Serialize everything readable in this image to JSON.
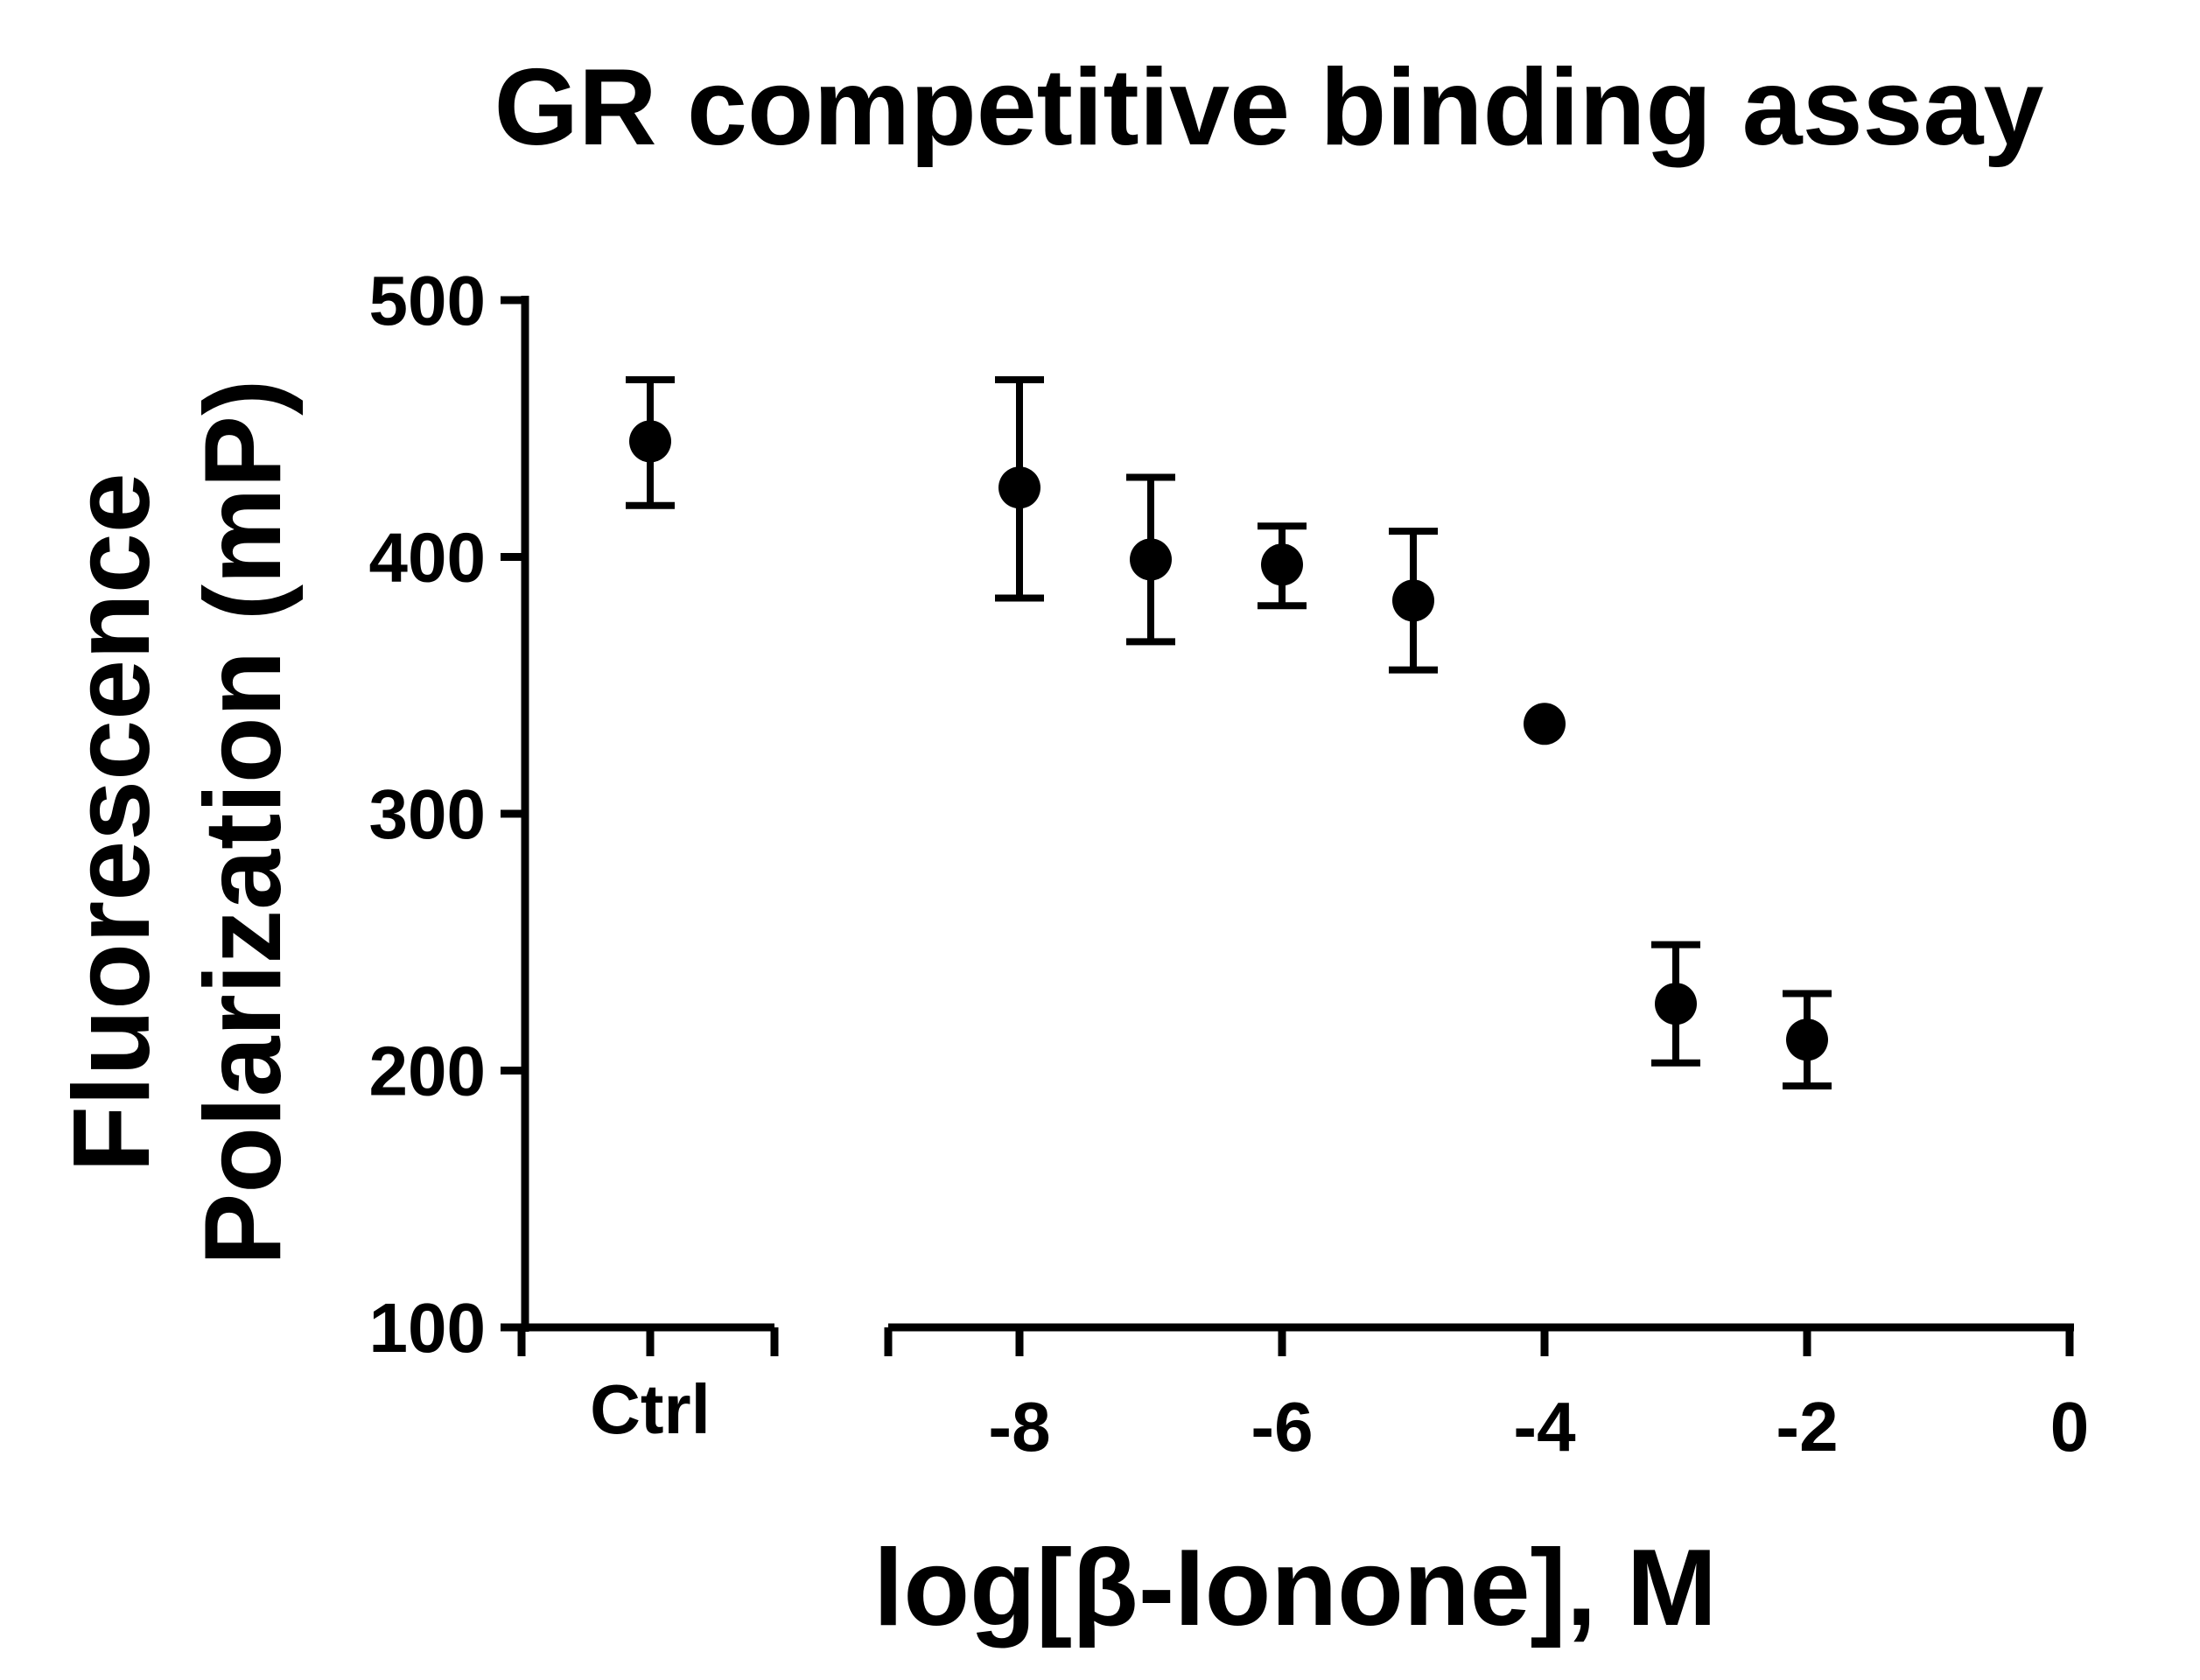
{
  "chart_data": {
    "type": "scatter",
    "title": "GR competitive binding assay",
    "ylabel_line1": "Fluorescence",
    "ylabel_line2": "Polarization (mP)",
    "xlabel": "log[β-Ionone], M",
    "ylim": [
      100,
      500
    ],
    "yticks": [
      100,
      200,
      300,
      400,
      500
    ],
    "x_segments": [
      {
        "name": "control",
        "categories": [
          "Ctrl"
        ]
      },
      {
        "name": "concentration",
        "xlim": [
          -9,
          0
        ],
        "xticks": [
          -8,
          -6,
          -4,
          -2,
          0
        ]
      }
    ],
    "control_point": {
      "label": "Ctrl",
      "y": 445,
      "err_low": 420,
      "err_high": 469
    },
    "points": [
      {
        "x": -8,
        "y": 427,
        "err_low": 384,
        "err_high": 469
      },
      {
        "x": -7,
        "y": 399,
        "err_low": 367,
        "err_high": 431
      },
      {
        "x": -6,
        "y": 397,
        "err_low": 381,
        "err_high": 412
      },
      {
        "x": -5,
        "y": 383,
        "err_low": 356,
        "err_high": 410
      },
      {
        "x": -4,
        "y": 335
      },
      {
        "x": -3,
        "y": 226,
        "err_low": 203,
        "err_high": 249
      },
      {
        "x": -2,
        "y": 212,
        "err_low": 194,
        "err_high": 230
      }
    ],
    "marker_color": "#000000",
    "grid": false,
    "legend": "none"
  }
}
